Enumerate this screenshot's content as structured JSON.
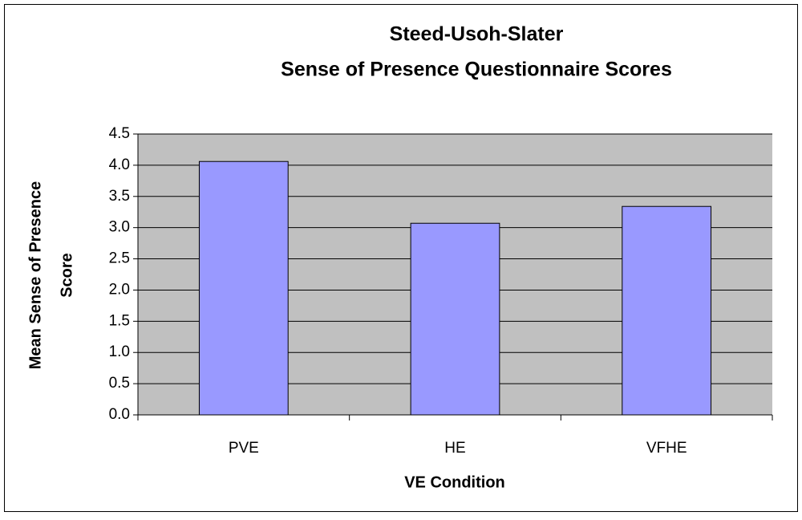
{
  "chart_data": {
    "type": "bar",
    "title": [
      "Steed-Usoh-Slater",
      "Sense of Presence Questionnaire Scores"
    ],
    "ylabel": [
      "Mean Sense of Presence",
      "Score"
    ],
    "xlabel": "VE Condition",
    "categories": [
      "PVE",
      "HE",
      "VFHE"
    ],
    "values": [
      4.06,
      3.07,
      3.34
    ],
    "color": "#9999ff",
    "ylim": [
      0,
      4.5
    ],
    "yticks": [
      {
        "value": 0,
        "label": "0.0"
      },
      0.5,
      {
        "value": 1,
        "label": "1.0"
      },
      1.5,
      {
        "value": 2,
        "label": "2.0"
      },
      2.5,
      {
        "value": 3,
        "label": "3.0"
      },
      3.5,
      {
        "value": 4,
        "label": "4.0"
      },
      4.5
    ],
    "grid": true
  }
}
